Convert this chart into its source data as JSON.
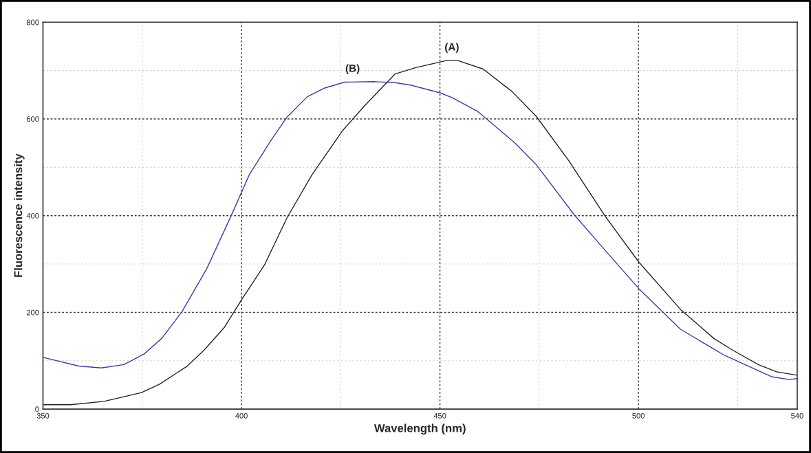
{
  "chart_data": {
    "type": "line",
    "xlabel": "Wavelength (nm)",
    "ylabel": "Fluorescence intensity",
    "xlim": [
      350,
      540
    ],
    "ylim": [
      0,
      800
    ],
    "xticks": [
      350,
      400,
      450,
      500,
      540
    ],
    "yticks": [
      0,
      200,
      400,
      600,
      800
    ],
    "grid": true,
    "series": [
      {
        "color": "#222222",
        "x": [
          350,
          357,
          365.4,
          374.8,
          379.3,
          386.2,
          390.6,
          395.7,
          400.1,
          405.8,
          411.5,
          417.8,
          425.4,
          431,
          438.7,
          443.9,
          451.8,
          454.4,
          460.9,
          468.1,
          474.3,
          482.5,
          491.6,
          500.1,
          510.6,
          519,
          523.7,
          530.2,
          534.8,
          540
        ],
        "values": [
          9,
          9,
          16,
          34,
          51,
          88,
          122,
          169,
          227,
          298,
          396,
          485,
          575,
          627,
          693,
          706,
          721,
          721,
          703,
          657,
          605,
          513,
          399,
          304,
          206,
          146,
          122,
          92,
          77,
          70
        ]
      },
      {
        "color": "#3b3bb0",
        "x": [
          350,
          359,
          364.7,
          370.4,
          375.5,
          379.9,
          385,
          391.3,
          397.3,
          402,
          407.7,
          411.5,
          416.6,
          421,
          426,
          433.6,
          438.7,
          442.6,
          450,
          453.1,
          459.6,
          468.8,
          474.3,
          483.8,
          491,
          500.1,
          510.6,
          521.7,
          533.5,
          538,
          540
        ],
        "values": [
          107,
          89,
          85,
          92,
          114,
          146,
          201,
          291,
          398,
          485,
          559,
          604,
          646,
          664,
          676,
          677,
          675,
          670,
          654,
          644,
          615,
          551,
          505,
          402,
          334,
          249,
          165,
          111,
          67,
          61,
          63
        ]
      }
    ],
    "annotations": [
      {
        "text": "(A)",
        "x": 453,
        "y": 721
      },
      {
        "text": "(B)",
        "x": 428,
        "y": 677
      }
    ]
  }
}
